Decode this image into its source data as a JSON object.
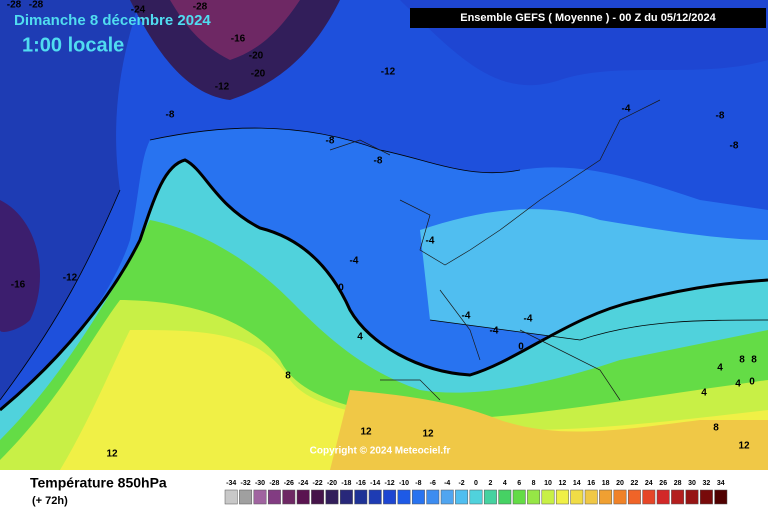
{
  "header": {
    "date": "Dimanche 8 décembre 2024",
    "time": "1:00 locale",
    "model": "Ensemble GEFS  ( Moyenne )  -  00 Z du 05/12/2024"
  },
  "footer": {
    "title": "Température 850hPa",
    "lead": "(+ 72h)",
    "copyright": "Copyright © 2024 Meteociel.fr"
  },
  "scale": {
    "labels": [
      -34,
      -32,
      -30,
      -28,
      -26,
      -24,
      -22,
      -20,
      -18,
      -16,
      -14,
      -12,
      -10,
      -8,
      -6,
      -4,
      -2,
      0,
      2,
      4,
      6,
      8,
      10,
      12,
      14,
      16,
      18,
      20,
      22,
      24,
      26,
      28,
      30,
      32,
      34
    ],
    "colors": [
      "#c8c8c8",
      "#a0a0a0",
      "#a064a0",
      "#823c82",
      "#6e2864",
      "#5a1450",
      "#46144a",
      "#321e5a",
      "#28287a",
      "#1e3296",
      "#1e3cb4",
      "#1e46d2",
      "#1e5ae6",
      "#2873f0",
      "#3c8cf0",
      "#50a5f0",
      "#50bef0",
      "#50d2dc",
      "#46d2a0",
      "#46d264",
      "#64dc46",
      "#96e646",
      "#c8f046",
      "#f0f046",
      "#f0dc46",
      "#f0c846",
      "#f0a032",
      "#f08228",
      "#f06428",
      "#e64628",
      "#d22828",
      "#b41e1e",
      "#961414",
      "#780a0a",
      "#500000"
    ]
  },
  "map": {
    "contour_labels": [
      -28,
      -28,
      -24,
      -28,
      -16,
      -20,
      -20,
      -12,
      -12,
      -8,
      -8,
      -8,
      -4,
      -8,
      -8,
      -12,
      -16,
      -4,
      -4,
      0,
      4,
      8,
      -4,
      -4,
      -4,
      0,
      8,
      8,
      4,
      4,
      0,
      4,
      12,
      12,
      12,
      8,
      12
    ]
  }
}
